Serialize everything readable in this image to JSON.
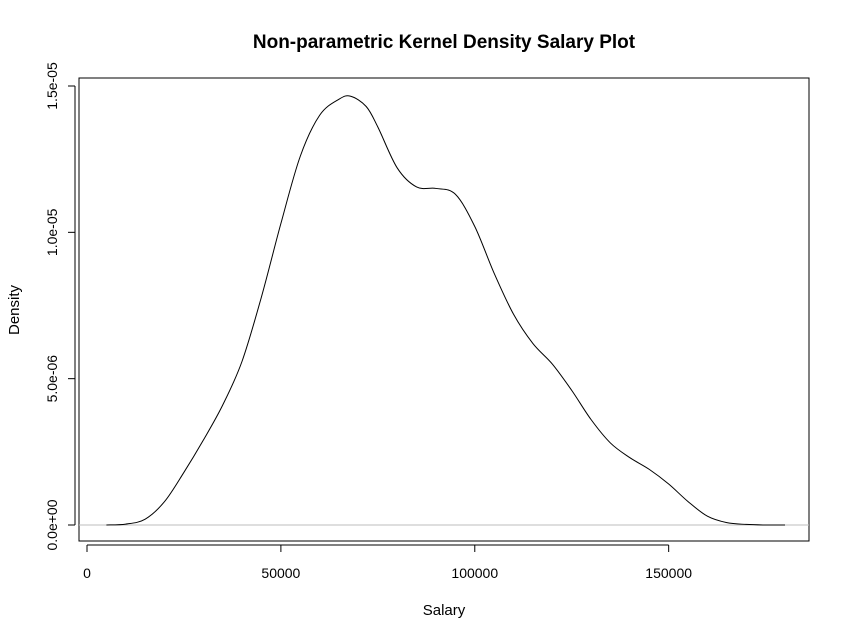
{
  "chart_data": {
    "type": "line",
    "title": "Non-parametric Kernel Density Salary Plot",
    "xlabel": "Salary",
    "ylabel": "Density",
    "xlim": [
      0,
      185000
    ],
    "ylim": [
      0,
      1.5e-05
    ],
    "x_ticks": [
      {
        "value": 0,
        "label": "0"
      },
      {
        "value": 50000,
        "label": "50000"
      },
      {
        "value": 100000,
        "label": "100000"
      },
      {
        "value": 150000,
        "label": "150000"
      }
    ],
    "y_ticks": [
      {
        "value": 0,
        "label": "0.0e+00"
      },
      {
        "value": 5e-06,
        "label": "5.0e-06"
      },
      {
        "value": 1e-05,
        "label": "1.0e-05"
      },
      {
        "value": 1.5e-05,
        "label": "1.5e-05"
      }
    ],
    "baseline": 0,
    "grid": false,
    "series": [
      {
        "color": "#000000",
        "x": [
          5000,
          10000,
          15000,
          20000,
          25000,
          30000,
          35000,
          40000,
          45000,
          50000,
          55000,
          60000,
          65000,
          68000,
          72000,
          75000,
          80000,
          85000,
          90000,
          95000,
          100000,
          105000,
          110000,
          115000,
          120000,
          125000,
          130000,
          135000,
          140000,
          145000,
          150000,
          155000,
          160000,
          165000,
          170000,
          175000,
          180000
        ],
        "y": [
          0.0,
          3e-08,
          2e-07,
          8e-07,
          1.8e-06,
          2.9e-06,
          4.1e-06,
          5.6e-06,
          7.8e-06,
          1.03e-05,
          1.26e-05,
          1.4e-05,
          1.455e-05,
          1.465e-05,
          1.43e-05,
          1.36e-05,
          1.22e-05,
          1.155e-05,
          1.15e-05,
          1.13e-05,
          1.02e-05,
          8.6e-06,
          7.2e-06,
          6.2e-06,
          5.5e-06,
          4.6e-06,
          3.6e-06,
          2.8e-06,
          2.3e-06,
          1.9e-06,
          1.4e-06,
          8e-07,
          3e-07,
          8e-08,
          2e-08,
          0.0,
          0.0
        ]
      }
    ]
  }
}
